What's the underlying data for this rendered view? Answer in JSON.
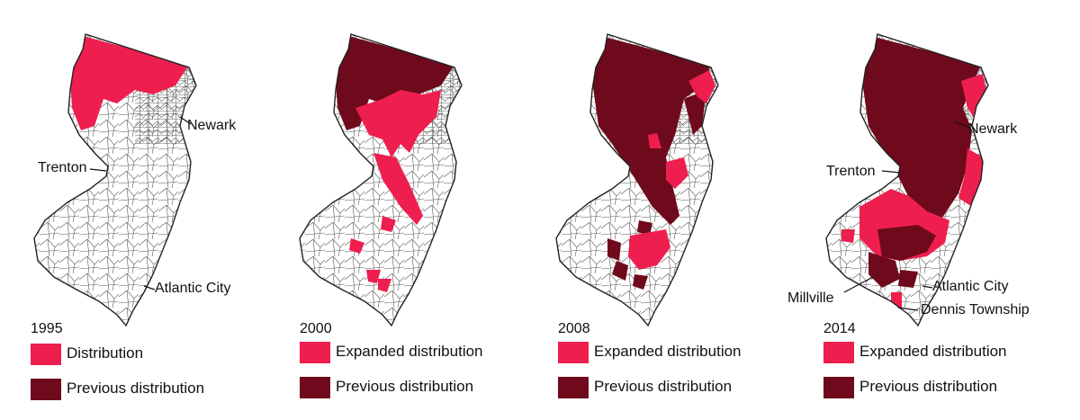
{
  "colors": {
    "distribution": "#ee1e4e",
    "previous": "#6e0a1b",
    "outline": "#222222"
  },
  "panels": [
    {
      "year": "1995",
      "legend": [
        "Distribution",
        "Previous distribution"
      ],
      "labels": {
        "newark": "Newark",
        "trenton": "Trenton",
        "atlantic": "Atlantic City"
      }
    },
    {
      "year": "2000",
      "legend": [
        "Expanded distribution",
        "Previous distribution"
      ]
    },
    {
      "year": "2008",
      "legend": [
        "Expanded distribution",
        "Previous distribution"
      ]
    },
    {
      "year": "2014",
      "legend": [
        "Expanded distribution",
        "Previous distribution"
      ],
      "labels": {
        "newark": "Newark",
        "trenton": "Trenton",
        "atlantic": "Atlantic City",
        "millville": "Millville",
        "dennis": "Dennis Township"
      }
    }
  ]
}
